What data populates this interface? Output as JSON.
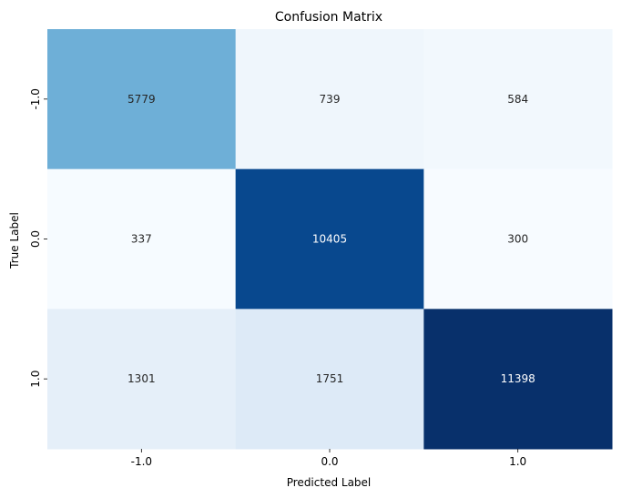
{
  "chart_data": {
    "type": "heatmap",
    "title": "Confusion Matrix",
    "xlabel": "Predicted Label",
    "ylabel": "True Label",
    "x_categories": [
      "-1.0",
      "0.0",
      "1.0"
    ],
    "y_categories": [
      "-1.0",
      "0.0",
      "1.0"
    ],
    "values": [
      [
        5779,
        739,
        584
      ],
      [
        337,
        10405,
        300
      ],
      [
        1301,
        1751,
        11398
      ]
    ],
    "colormap": "Blues",
    "colorbar": false,
    "annotations": true
  }
}
